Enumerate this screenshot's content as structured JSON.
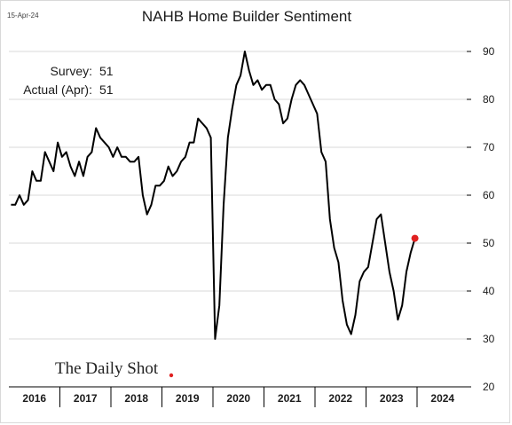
{
  "date_stamp": "15-Apr-24",
  "chart_data": {
    "type": "line",
    "title": "NAHB Home Builder Sentiment",
    "xlabel": "",
    "ylabel": "",
    "ylim": [
      20,
      90
    ],
    "yticks": [
      20,
      30,
      40,
      50,
      60,
      70,
      80,
      90
    ],
    "x_years": [
      "2016",
      "2017",
      "2018",
      "2019",
      "2020",
      "2021",
      "2022",
      "2023",
      "2024"
    ],
    "grid": "horizontal",
    "line_color": "#000000",
    "marker_color": "#e02020",
    "series": [
      {
        "start": "2016-01",
        "values": [
          58,
          58,
          60,
          58,
          59,
          65,
          63,
          63,
          69,
          67,
          65,
          71,
          68,
          69,
          66,
          64,
          67,
          64,
          68,
          69,
          74,
          72,
          71,
          70,
          68,
          70,
          68,
          68,
          67,
          67,
          68,
          60,
          56,
          58,
          62,
          62,
          63,
          66,
          64,
          65,
          67,
          68,
          71,
          71,
          76,
          75,
          74,
          72,
          30,
          37,
          58,
          72,
          78,
          83,
          85,
          90,
          86,
          83,
          84,
          82,
          83,
          83,
          80,
          79,
          75,
          76,
          80,
          83,
          84,
          83,
          81,
          79,
          77,
          69,
          67,
          55,
          49,
          46,
          38,
          33,
          31,
          35,
          42,
          44,
          45,
          50,
          55,
          56,
          50,
          44,
          40,
          34,
          37,
          44,
          48,
          51
        ]
      }
    ]
  },
  "annotation": {
    "survey_label": "Survey:",
    "survey_value": "51",
    "actual_label": "Actual (Apr):",
    "actual_value": "51"
  },
  "logo": {
    "text": "The Daily Shot"
  }
}
